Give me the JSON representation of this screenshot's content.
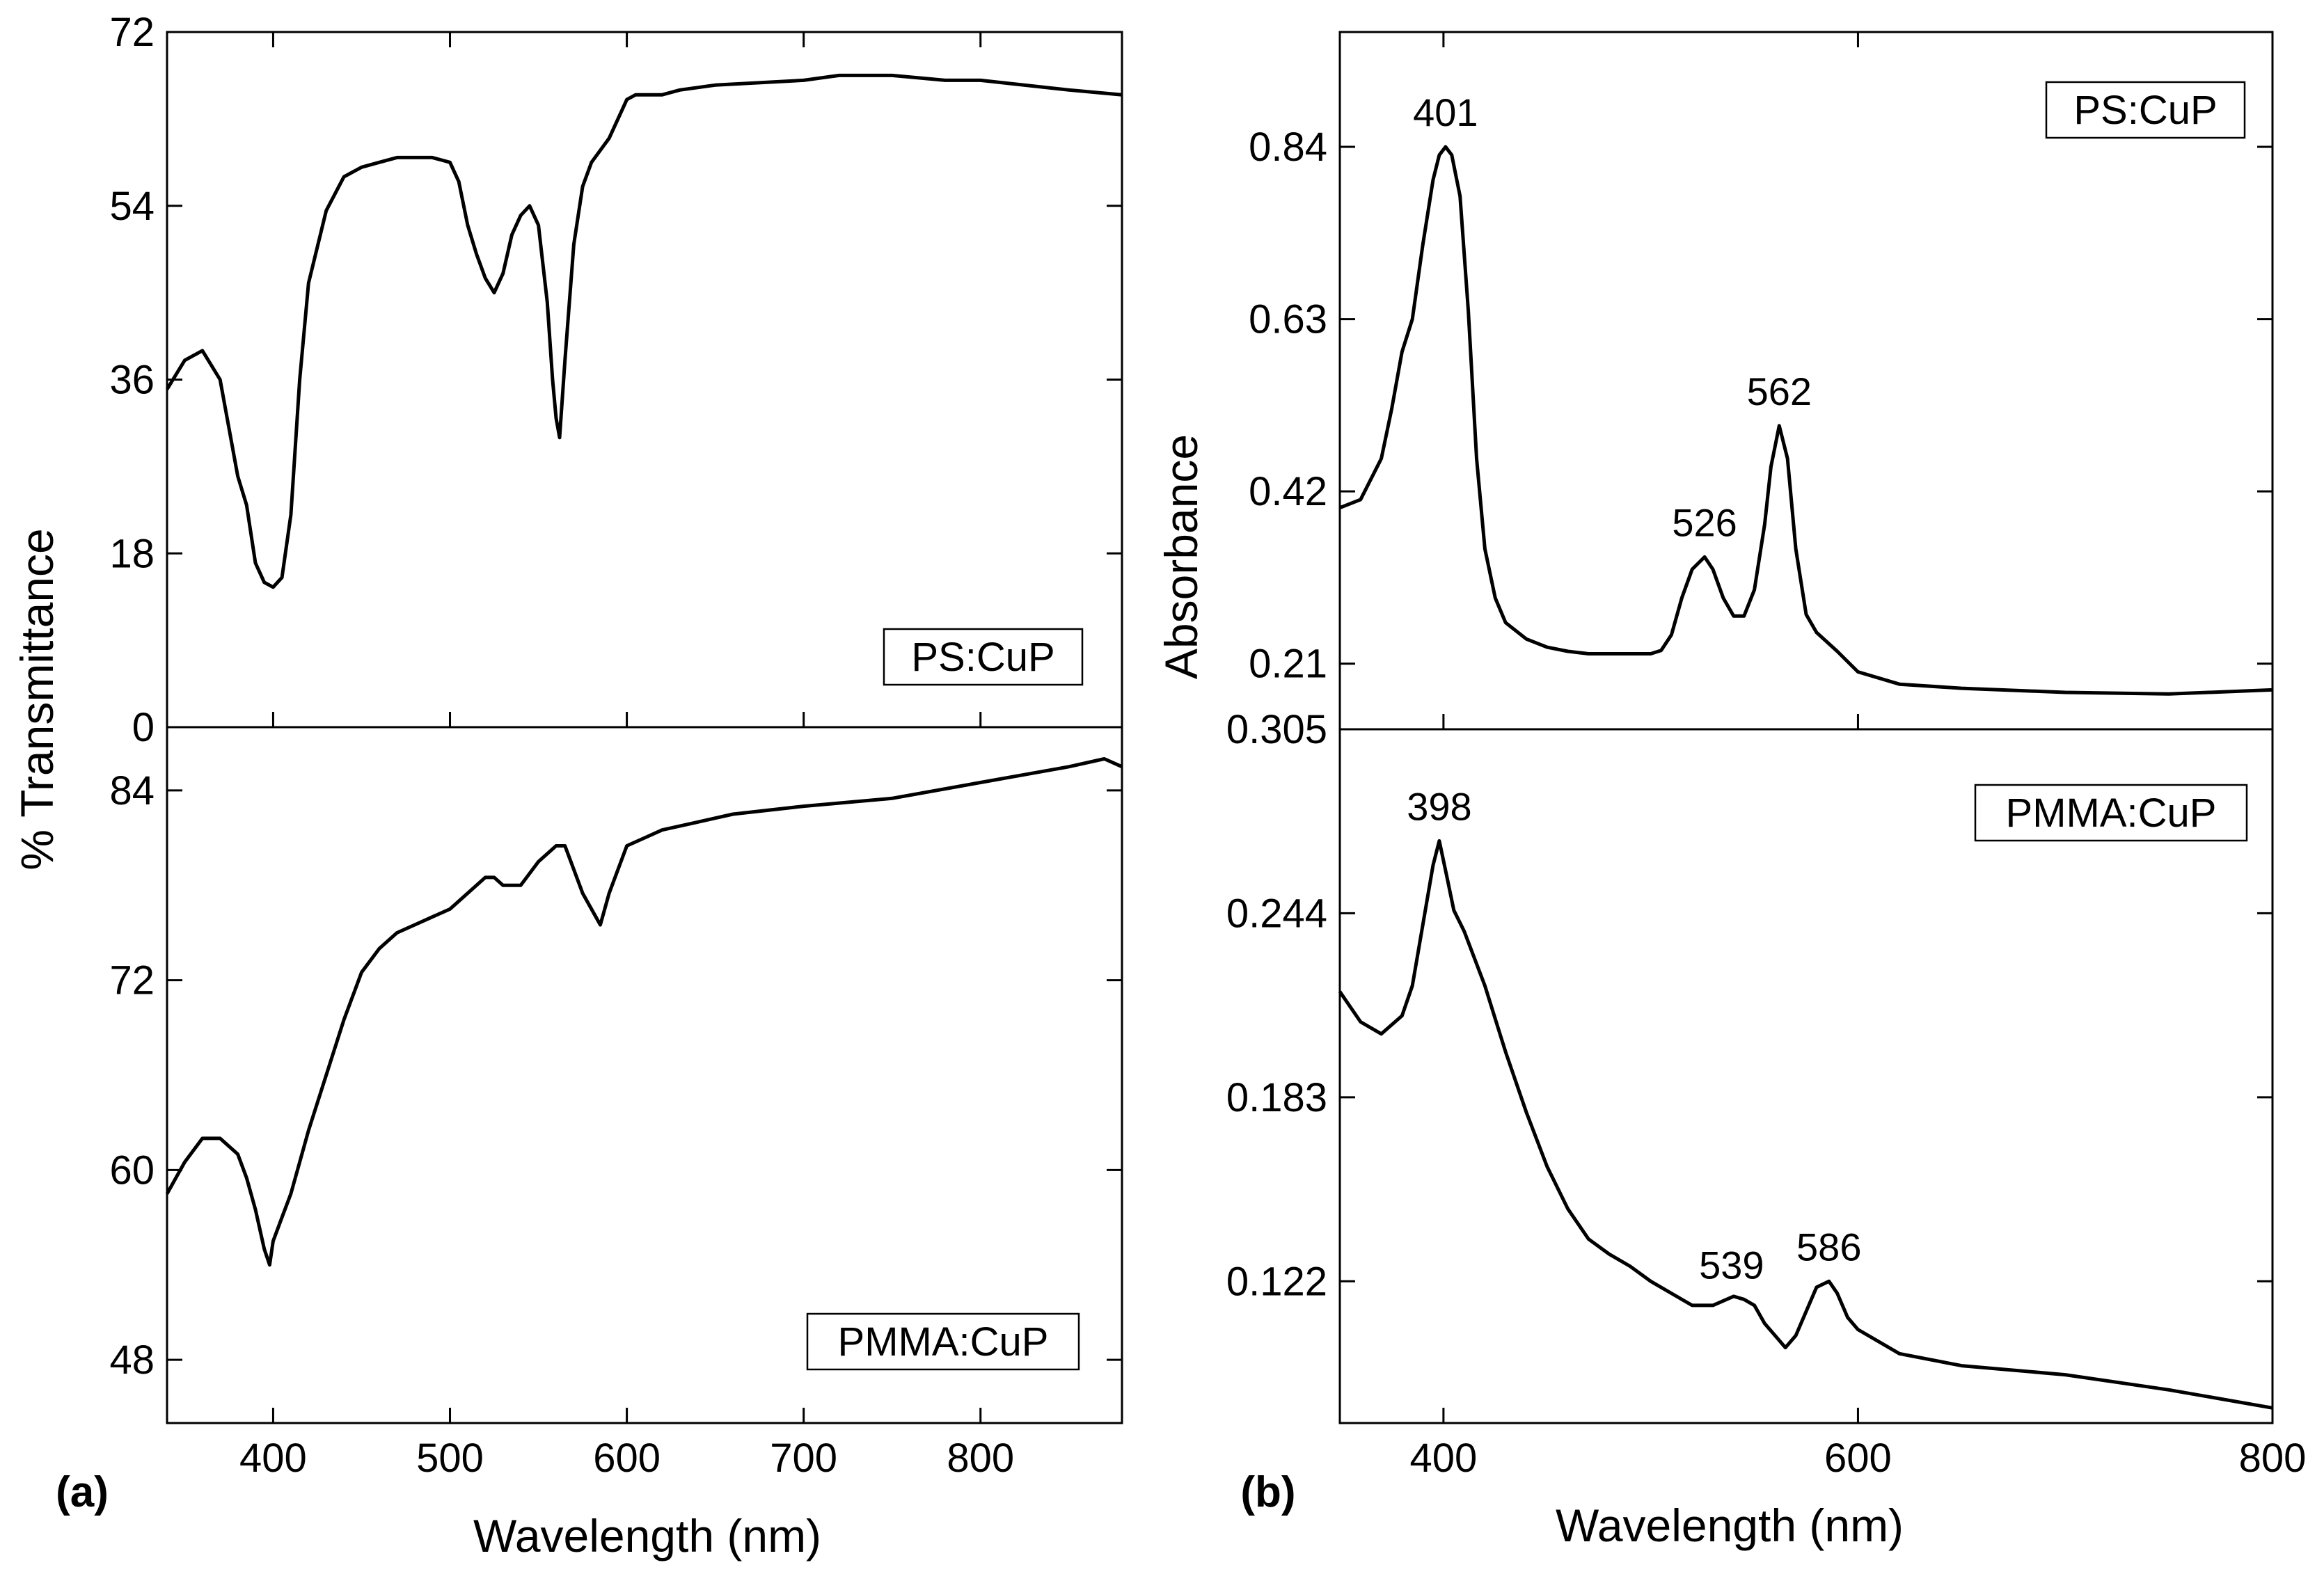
{
  "chart_data": [
    {
      "type": "line",
      "panel": "(a)",
      "xlabel": "Wavelength (nm)",
      "ylabel": "% Transmittance",
      "xlim": [
        340,
        880
      ],
      "x_ticks": [
        400,
        500,
        600,
        700,
        800
      ],
      "grid": false,
      "subplots": [
        {
          "legend": "PS:CuP",
          "ylim": [
            0,
            72
          ],
          "y_ticks": [
            0,
            18,
            36,
            54,
            72
          ],
          "series": [
            {
              "x": [
                340,
                350,
                360,
                370,
                375,
                380,
                385,
                390,
                395,
                400,
                405,
                410,
                415,
                420,
                430,
                440,
                450,
                460,
                470,
                480,
                490,
                500,
                505,
                510,
                515,
                520,
                525,
                530,
                535,
                540,
                545,
                550,
                555,
                558,
                560,
                562,
                565,
                570,
                575,
                580,
                590,
                600,
                605,
                610,
                620,
                630,
                650,
                700,
                720,
                750,
                780,
                800,
                850,
                880
              ],
              "y": [
                35,
                38,
                39,
                36,
                31,
                26,
                23,
                17,
                15,
                14.5,
                15.5,
                22,
                36,
                46,
                53.5,
                57,
                58,
                58.5,
                59,
                59,
                59,
                58.5,
                56.5,
                52,
                49,
                46.5,
                45,
                47,
                51,
                53,
                54,
                52,
                44,
                36,
                32,
                30,
                38,
                50,
                56,
                58.5,
                61,
                65,
                65.5,
                65.5,
                65.5,
                66,
                66.5,
                67,
                67.5,
                67.5,
                67,
                67,
                66,
                65.5
              ]
            }
          ]
        },
        {
          "legend": "PMMA:CuP",
          "ylim": [
            44,
            88
          ],
          "y_ticks": [
            48,
            60,
            72,
            84
          ],
          "series": [
            {
              "x": [
                340,
                350,
                360,
                370,
                380,
                385,
                390,
                395,
                398,
                400,
                405,
                410,
                420,
                430,
                440,
                450,
                460,
                470,
                480,
                490,
                500,
                510,
                520,
                525,
                530,
                540,
                550,
                560,
                565,
                570,
                575,
                580,
                585,
                590,
                600,
                610,
                620,
                640,
                660,
                700,
                750,
                800,
                850,
                870,
                880
              ],
              "y": [
                58.5,
                60.5,
                62,
                62,
                61,
                59.5,
                57.5,
                55,
                54,
                55.5,
                57,
                58.5,
                62.5,
                66,
                69.5,
                72.5,
                74,
                75,
                75.5,
                76,
                76.5,
                77.5,
                78.5,
                78.5,
                78,
                78,
                79.5,
                80.5,
                80.5,
                79,
                77.5,
                76.5,
                75.5,
                77.5,
                80.5,
                81,
                81.5,
                82,
                82.5,
                83,
                83.5,
                84.5,
                85.5,
                86,
                85.5
              ]
            }
          ]
        }
      ]
    },
    {
      "type": "line",
      "panel": "(b)",
      "xlabel": "Wavelength (nm)",
      "ylabel": "Absorbance",
      "xlim": [
        350,
        800
      ],
      "x_ticks": [
        400,
        600,
        800
      ],
      "grid": false,
      "subplots": [
        {
          "legend": "PS:CuP",
          "ylim": [
            0.13,
            0.98
          ],
          "y_ticks": [
            0.21,
            0.42,
            0.63,
            0.84
          ],
          "y_tick_labels": [
            "0.21",
            "0.42",
            "0.63",
            "0.84"
          ],
          "annotations": [
            {
              "text": "401",
              "x": 401,
              "y": 0.84
            },
            {
              "text": "526",
              "x": 526,
              "y": 0.34
            },
            {
              "text": "562",
              "x": 562,
              "y": 0.5
            }
          ],
          "series": [
            {
              "x": [
                350,
                360,
                370,
                375,
                380,
                385,
                390,
                395,
                398,
                401,
                404,
                408,
                412,
                416,
                420,
                425,
                430,
                440,
                450,
                460,
                470,
                480,
                490,
                500,
                505,
                510,
                515,
                520,
                526,
                530,
                535,
                540,
                545,
                550,
                555,
                558,
                562,
                566,
                570,
                575,
                580,
                590,
                600,
                620,
                650,
                700,
                750,
                800
              ],
              "y": [
                0.4,
                0.41,
                0.46,
                0.52,
                0.59,
                0.63,
                0.72,
                0.8,
                0.83,
                0.84,
                0.83,
                0.78,
                0.64,
                0.46,
                0.35,
                0.29,
                0.26,
                0.24,
                0.23,
                0.225,
                0.222,
                0.222,
                0.222,
                0.222,
                0.226,
                0.245,
                0.29,
                0.325,
                0.34,
                0.325,
                0.29,
                0.268,
                0.268,
                0.3,
                0.38,
                0.45,
                0.5,
                0.46,
                0.35,
                0.27,
                0.248,
                0.225,
                0.2,
                0.185,
                0.18,
                0.175,
                0.173,
                0.178
              ]
            }
          ]
        },
        {
          "legend": "PMMA:CuP",
          "ylim": [
            0.075,
            0.305
          ],
          "y_ticks": [
            0.122,
            0.183,
            0.244,
            0.305
          ],
          "y_tick_labels": [
            "0.122",
            "0.183",
            "0.244",
            "0.305"
          ],
          "annotations": [
            {
              "text": "398",
              "x": 398,
              "y": 0.268
            },
            {
              "text": "539",
              "x": 539,
              "y": 0.116
            },
            {
              "text": "586",
              "x": 586,
              "y": 0.122
            }
          ],
          "series": [
            {
              "x": [
                350,
                360,
                370,
                380,
                385,
                390,
                395,
                398,
                402,
                405,
                410,
                420,
                430,
                440,
                450,
                460,
                470,
                480,
                490,
                500,
                510,
                520,
                530,
                540,
                545,
                550,
                555,
                560,
                565,
                570,
                575,
                580,
                586,
                590,
                595,
                600,
                620,
                650,
                700,
                750,
                800
              ],
              "y": [
                0.218,
                0.208,
                0.204,
                0.21,
                0.22,
                0.24,
                0.26,
                0.268,
                0.255,
                0.245,
                0.238,
                0.22,
                0.198,
                0.178,
                0.16,
                0.146,
                0.136,
                0.131,
                0.127,
                0.122,
                0.118,
                0.114,
                0.114,
                0.117,
                0.116,
                0.114,
                0.108,
                0.104,
                0.1,
                0.104,
                0.112,
                0.12,
                0.122,
                0.118,
                0.11,
                0.106,
                0.098,
                0.094,
                0.091,
                0.086,
                0.08
              ]
            }
          ]
        }
      ]
    }
  ]
}
